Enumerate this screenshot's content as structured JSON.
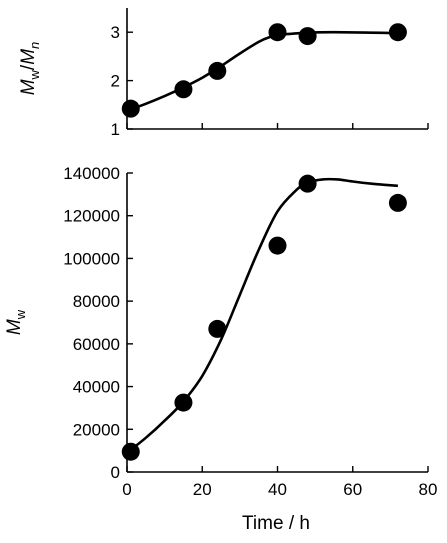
{
  "chart_data": [
    {
      "type": "scatter",
      "title": "",
      "xlabel": "",
      "ylabel": {
        "main": "M",
        "sub1": "w",
        "sep": "/",
        "main2": "M",
        "sub2": "n"
      },
      "xlim": [
        0,
        80
      ],
      "ylim": [
        1,
        3.5
      ],
      "yticks": [
        1,
        2,
        3
      ],
      "xticks": [
        0,
        20,
        40,
        60,
        80
      ],
      "show_x_tick_labels": false,
      "grid": false,
      "series": [
        {
          "kind": "points",
          "x": [
            1,
            15,
            24,
            40,
            48,
            72
          ],
          "y": [
            1.42,
            1.82,
            2.2,
            3.0,
            2.92,
            3.0
          ]
        },
        {
          "kind": "fit-curve",
          "x": [
            0,
            5,
            10,
            15,
            20,
            25,
            30,
            35,
            38,
            41,
            44,
            48,
            55,
            65,
            72
          ],
          "y": [
            1.38,
            1.52,
            1.68,
            1.86,
            2.06,
            2.3,
            2.56,
            2.8,
            2.9,
            2.95,
            2.97,
            2.99,
            3.0,
            2.99,
            2.98
          ]
        }
      ]
    },
    {
      "type": "scatter",
      "title": "",
      "xlabel": "Time / h",
      "ylabel": {
        "main": "M",
        "sub1": "w"
      },
      "xlim": [
        0,
        80
      ],
      "ylim": [
        0,
        140000
      ],
      "yticks": [
        0,
        20000,
        40000,
        60000,
        80000,
        100000,
        120000,
        140000
      ],
      "xticks": [
        0,
        20,
        40,
        60,
        80
      ],
      "show_x_tick_labels": true,
      "grid": false,
      "series": [
        {
          "kind": "points",
          "x": [
            1,
            15,
            24,
            40,
            48,
            72
          ],
          "y": [
            9500,
            32500,
            67000,
            106000,
            135000,
            126000
          ]
        },
        {
          "kind": "fit-curve",
          "x": [
            0,
            5,
            10,
            15,
            20,
            25,
            30,
            35,
            40,
            45,
            48,
            52,
            56,
            60,
            65,
            72
          ],
          "y": [
            9000,
            16000,
            24000,
            33000,
            45000,
            62000,
            83000,
            104000,
            122000,
            132000,
            135500,
            137000,
            137000,
            136000,
            135000,
            134000
          ]
        }
      ]
    }
  ]
}
